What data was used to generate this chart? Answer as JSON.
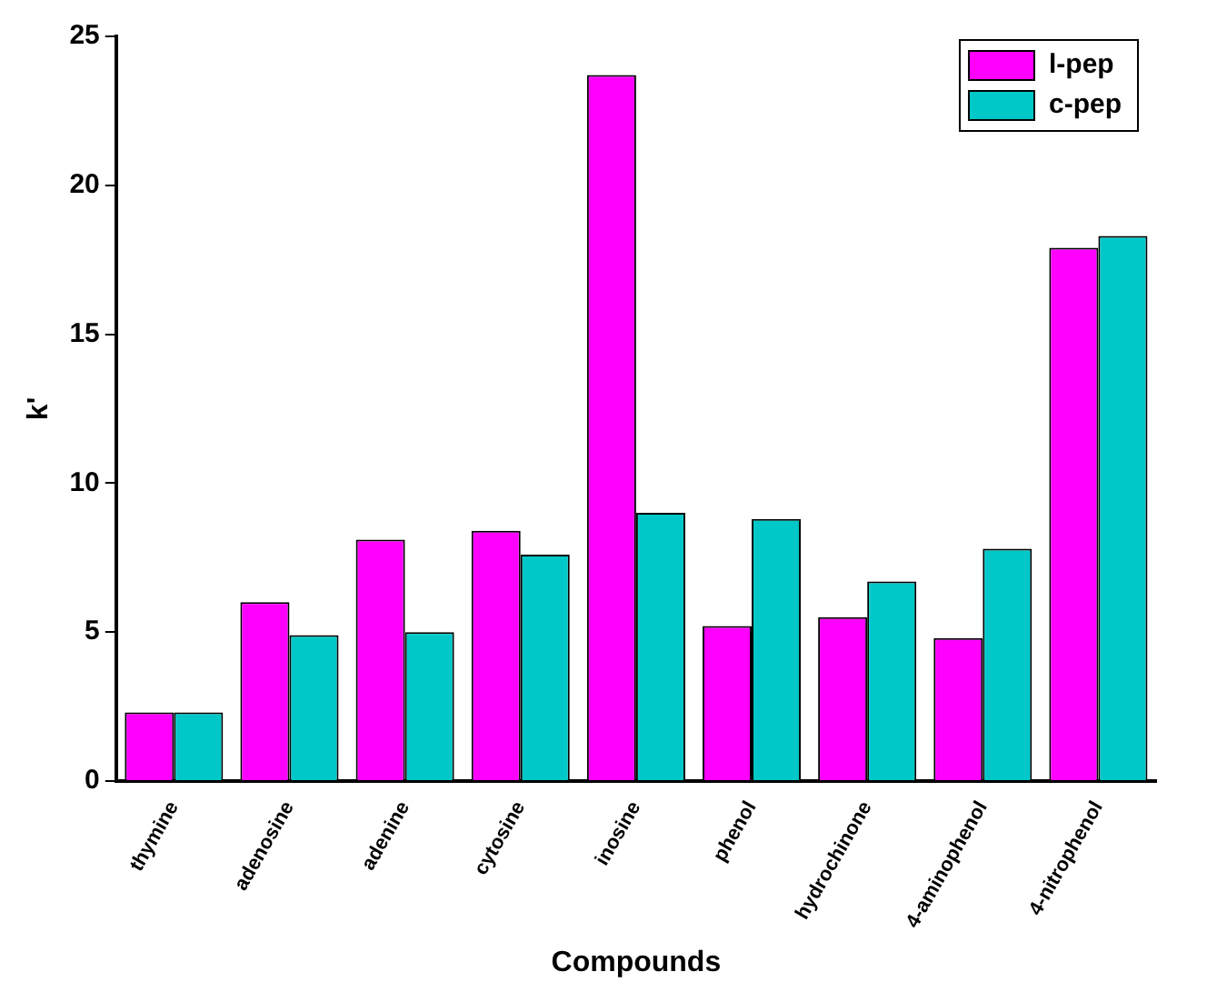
{
  "chart_data": {
    "type": "bar",
    "xlabel": "Compounds",
    "ylabel": "k'",
    "categories": [
      "thymine",
      "adenosine",
      "adenine",
      "cytosine",
      "inosine",
      "phenol",
      "hydrochinone",
      "4-aminophenol",
      "4-nitrophenol"
    ],
    "series": [
      {
        "name": "l-pep",
        "color": "#ff00ff",
        "values": [
          2.3,
          6.0,
          8.1,
          8.4,
          23.7,
          5.2,
          5.5,
          4.8,
          17.9
        ]
      },
      {
        "name": "c-pep",
        "color": "#00c8c8",
        "values": [
          2.3,
          4.9,
          5.0,
          7.6,
          9.0,
          8.8,
          6.7,
          7.8,
          18.3
        ]
      }
    ],
    "ylim": [
      0,
      25
    ],
    "yticks": [
      0,
      5,
      10,
      15,
      20,
      25
    ],
    "grid": false,
    "legend": "top right"
  }
}
